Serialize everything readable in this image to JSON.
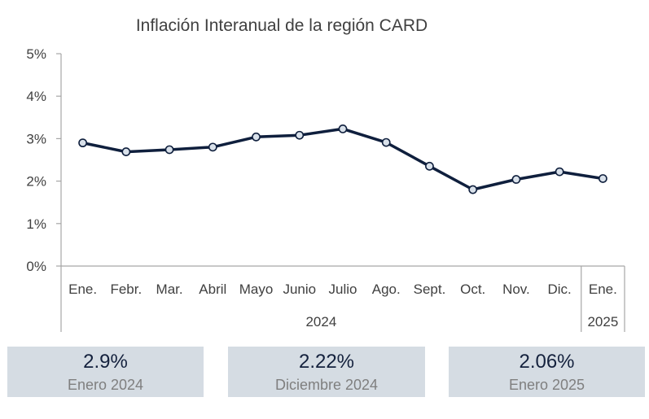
{
  "chart_data": {
    "type": "line",
    "title": "Inflación Interanual de la región CARD",
    "categories": [
      "Ene.",
      "Febr.",
      "Mar.",
      "Abril",
      "Mayo",
      "Junio",
      "Julio",
      "Ago.",
      "Sept.",
      "Oct.",
      "Nov.",
      "Dic.",
      "Ene."
    ],
    "groups": [
      {
        "label": "2024",
        "count": 12
      },
      {
        "label": "2025",
        "count": 1
      }
    ],
    "series": [
      {
        "values": [
          2.9,
          2.69,
          2.74,
          2.8,
          3.04,
          3.08,
          3.23,
          2.91,
          2.35,
          1.8,
          2.04,
          2.22,
          2.06
        ]
      }
    ],
    "ylim": [
      0,
      5
    ],
    "yticks": [
      "0%",
      "1%",
      "2%",
      "3%",
      "4%",
      "5%"
    ],
    "grid": false,
    "colors": {
      "line": "#0f1f3d",
      "marker_fill": "#d9e1ea",
      "axis": "#a6a6a6"
    }
  },
  "cards": [
    {
      "value": "2.9%",
      "label": "Enero 2024"
    },
    {
      "value": "2.22%",
      "label": "Diciembre 2024"
    },
    {
      "value": "2.06%",
      "label": "Enero 2025"
    }
  ]
}
